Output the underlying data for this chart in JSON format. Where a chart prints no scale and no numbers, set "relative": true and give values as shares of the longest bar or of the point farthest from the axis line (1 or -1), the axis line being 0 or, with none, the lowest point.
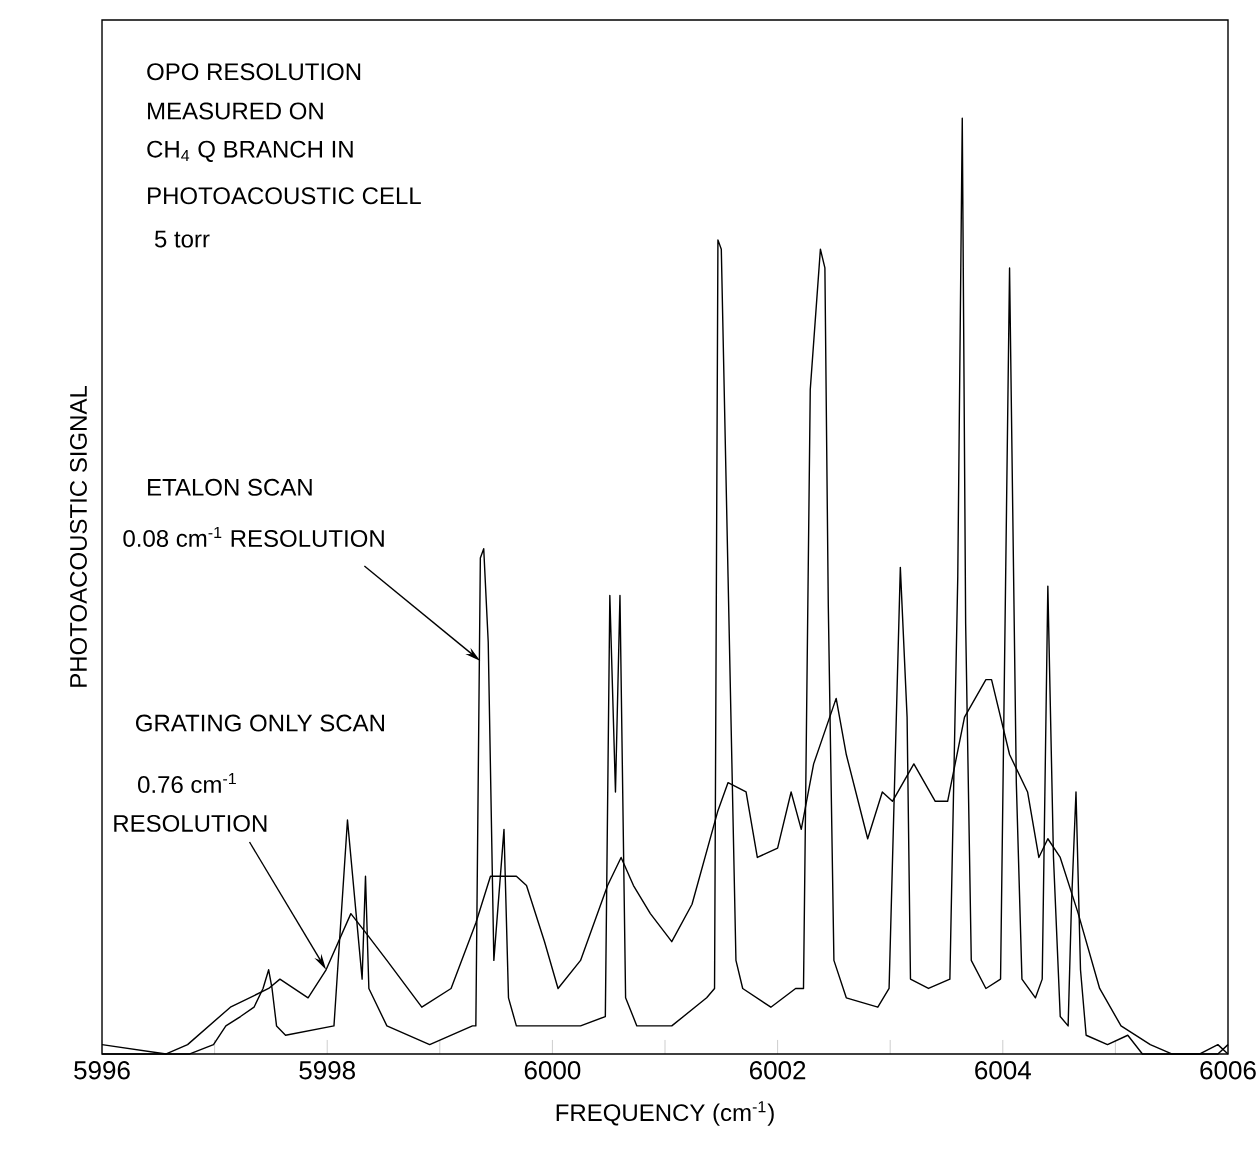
{
  "chart_data": {
    "type": "line",
    "relative": true,
    "xlabel": "FREQUENCY (cm$^{-1}$)",
    "ylabel": "PHOTOACOUSTIC SIGNAL",
    "xlim": [
      5996,
      6006
    ],
    "xticks": [
      5996,
      {
        "value": 5997,
        "label": null
      },
      5998,
      {
        "value": 5999,
        "label": null
      },
      6000,
      {
        "value": 6001,
        "label": null
      },
      6002,
      {
        "value": 6003,
        "label": null
      },
      6004,
      {
        "value": 6005,
        "label": null
      },
      6006
    ],
    "annotations": [
      "OPO RESOLUTION",
      "MEASURED ON",
      "CH$_{4}$ Q BRANCH IN",
      "PHOTOACOUSTIC CELL",
      "5 torr",
      "ETALON SCAN",
      {
        "text": "0.08 cm$^{-1}$ RESOLUTION",
        "x": 5999.36,
        "y": 0.42
      },
      "GRATING ONLY SCAN",
      "0.76 cm$^{-1}$",
      {
        "text": "RESOLUTION",
        "x": 5997.99,
        "y": 0.09
      }
    ],
    "series": [
      {
        "color": "#000000",
        "x": [
          5996.0,
          5996.78,
          5996.99,
          5997.1,
          5997.23,
          5997.35,
          5997.43,
          5997.48,
          5997.51,
          5997.55,
          5997.63,
          5998.06,
          5998.18,
          5998.31,
          5998.34,
          5998.37,
          5998.53,
          5998.91,
          5999.29,
          5999.32,
          5999.36,
          5999.39,
          5999.43,
          5999.48,
          5999.57,
          5999.61,
          5999.68,
          6000.25,
          6000.47,
          6000.51,
          6000.56,
          6000.6,
          6000.65,
          6000.75,
          6001.06,
          6001.37,
          6001.44,
          6001.47,
          6001.5,
          6001.56,
          6001.63,
          6001.69,
          6001.94,
          6002.16,
          6002.23,
          6002.29,
          6002.38,
          6002.42,
          6002.45,
          6002.5,
          6002.61,
          6002.89,
          6002.99,
          6003.09,
          6003.15,
          6003.18,
          6003.34,
          6003.53,
          6003.6,
          6003.64,
          6003.67,
          6003.72,
          6003.85,
          6003.98,
          6004.06,
          6004.12,
          6004.17,
          6004.29,
          6004.35,
          6004.4,
          6004.45,
          6004.51,
          6004.58,
          6004.61,
          6004.65,
          6004.69,
          6004.74,
          6004.93,
          6005.11,
          6005.24,
          6005.75,
          6005.91,
          6006.0
        ],
        "values": [
          0,
          0,
          0.01,
          0.03,
          0.04,
          0.05,
          0.07,
          0.09,
          0.07,
          0.03,
          0.02,
          0.03,
          0.25,
          0.08,
          0.19,
          0.07,
          0.03,
          0.01,
          0.03,
          0.03,
          0.53,
          0.54,
          0.44,
          0.1,
          0.24,
          0.06,
          0.03,
          0.03,
          0.04,
          0.49,
          0.28,
          0.49,
          0.06,
          0.03,
          0.03,
          0.06,
          0.07,
          0.87,
          0.86,
          0.51,
          0.1,
          0.07,
          0.05,
          0.07,
          0.07,
          0.71,
          0.86,
          0.84,
          0.48,
          0.1,
          0.06,
          0.05,
          0.07,
          0.52,
          0.36,
          0.08,
          0.07,
          0.08,
          0.51,
          1,
          0.46,
          0.1,
          0.07,
          0.08,
          0.84,
          0.29,
          0.08,
          0.06,
          0.08,
          0.5,
          0.21,
          0.04,
          0.03,
          0.16,
          0.28,
          0.09,
          0.02,
          0.01,
          0.02,
          0,
          0,
          0.01,
          0
        ]
      },
      {
        "color": "#000000",
        "x": [
          5996.0,
          5996.57,
          5996.76,
          5997.14,
          5997.48,
          5997.58,
          5997.83,
          5997.99,
          5998.21,
          5998.34,
          5998.53,
          5998.84,
          5999.1,
          5999.32,
          5999.45,
          5999.68,
          5999.77,
          5999.93,
          6000.05,
          6000.25,
          6000.49,
          6000.61,
          6000.72,
          6000.87,
          6001.06,
          6001.24,
          6001.47,
          6001.56,
          6001.72,
          6001.82,
          6002.0,
          6002.12,
          6002.21,
          6002.32,
          6002.52,
          6002.61,
          6002.8,
          6002.93,
          6003.02,
          6003.21,
          6003.4,
          6003.51,
          6003.66,
          6003.85,
          6003.9,
          6004.06,
          6004.22,
          6004.32,
          6004.4,
          6004.51,
          6004.67,
          6004.86,
          6005.05,
          6005.31,
          6005.5,
          6005.75,
          6005.91,
          6006.0
        ],
        "values": [
          0.01,
          0,
          0.01,
          0.05,
          0.07,
          0.08,
          0.06,
          0.09,
          0.15,
          0.13,
          0.1,
          0.05,
          0.07,
          0.14,
          0.19,
          0.19,
          0.18,
          0.12,
          0.07,
          0.1,
          0.18,
          0.21,
          0.18,
          0.15,
          0.12,
          0.16,
          0.26,
          0.29,
          0.28,
          0.21,
          0.22,
          0.28,
          0.24,
          0.31,
          0.38,
          0.32,
          0.23,
          0.28,
          0.27,
          0.31,
          0.27,
          0.27,
          0.36,
          0.4,
          0.4,
          0.32,
          0.28,
          0.21,
          0.23,
          0.21,
          0.15,
          0.07,
          0.03,
          0.01,
          0,
          0,
          0,
          0.01
        ]
      }
    ]
  }
}
